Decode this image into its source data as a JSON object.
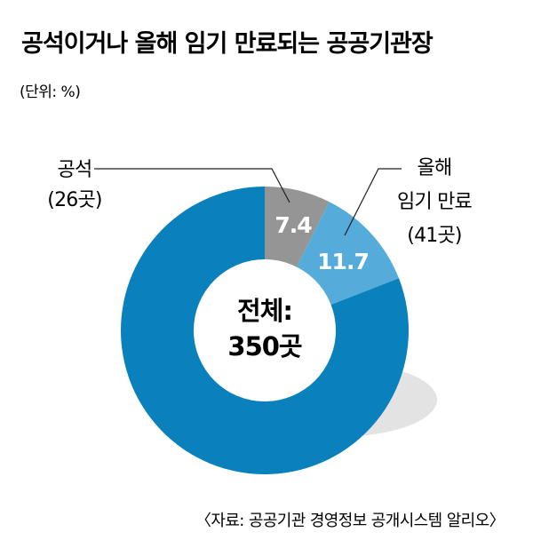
{
  "title": "공석이거나 올해 임기 만료되는 공공기관장",
  "unit_note": "(단위: %)",
  "center_label": {
    "line1": "전체:",
    "line2": "350곳"
  },
  "source": "〈자료: 공공기관 경영정보 공개시스템 알리오〉",
  "colors": {
    "vacant": "#959595",
    "expiring": "#55acdb",
    "other": "#0a81bc",
    "shadow": "#e3e3e3",
    "leader_line": "#231f20"
  },
  "chart_data": {
    "type": "pie",
    "title": "공석이거나 올해 임기 만료되는 공공기관장",
    "unit": "%",
    "total": "350곳",
    "slices": [
      {
        "key": "vacant",
        "label_lines": [
          "공석",
          "(26곳)"
        ],
        "value": 7.4,
        "value_label": "7.4"
      },
      {
        "key": "expiring",
        "label_lines": [
          "올해",
          "임기 만료",
          "(41곳)"
        ],
        "value": 11.7,
        "value_label": "11.7"
      },
      {
        "key": "other",
        "label_lines": [],
        "value": 80.9,
        "value_label": ""
      }
    ]
  }
}
